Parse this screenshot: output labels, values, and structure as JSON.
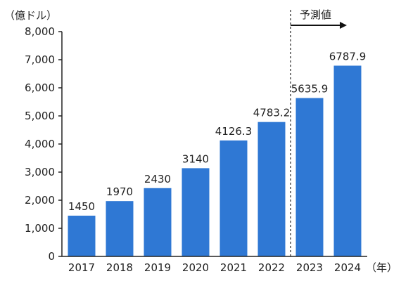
{
  "chart_data": {
    "type": "bar",
    "categories": [
      "2017",
      "2018",
      "2019",
      "2020",
      "2021",
      "2022",
      "2023",
      "2024"
    ],
    "values": [
      1450,
      1970,
      2430,
      3140,
      4126.3,
      4783.2,
      5635.9,
      6787.9
    ],
    "value_labels": [
      "1450",
      "1970",
      "2430",
      "3140",
      "4126.3",
      "4783.2",
      "5635.9",
      "6787.9"
    ],
    "ylim": [
      0,
      8000
    ],
    "yticks": [
      0,
      1000,
      2000,
      3000,
      4000,
      5000,
      6000,
      7000,
      8000
    ],
    "ytick_labels": [
      "0",
      "1,000",
      "2,000",
      "3,000",
      "4,000",
      "5,000",
      "6,000",
      "7,000",
      "8,000"
    ],
    "y_unit": "（億ドル）",
    "x_unit": "（年）",
    "forecast_label": "予測値",
    "forecast_start_category": "2023",
    "bar_color": "#2f78d4",
    "axis_color": "#222222",
    "grid": false
  }
}
